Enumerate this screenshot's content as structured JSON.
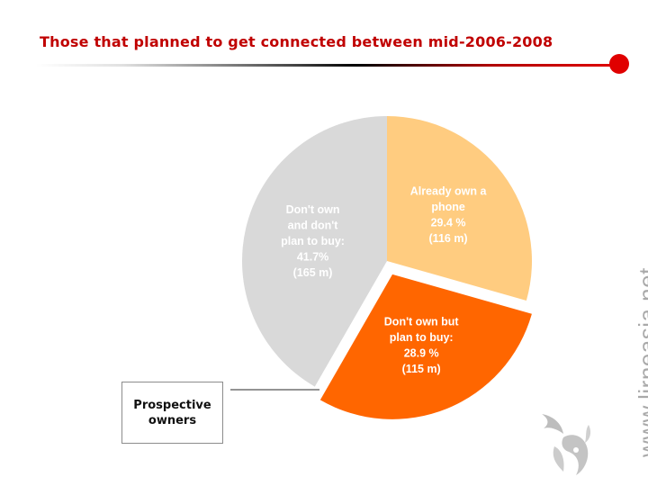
{
  "title": "Those that planned to get connected between mid-2006-2008",
  "callout": {
    "line1": "Prospective",
    "line2": "owners"
  },
  "watermark": "www.lirneasia.net",
  "icons": {
    "logo": "lirneasia-flame-logo"
  },
  "colors": {
    "title": "#c00000",
    "already_own": "#ffcc80",
    "plan_to_buy": "#ff6600",
    "dont_plan": "#d9d9d9",
    "accent": "#e00000"
  },
  "chart_data": {
    "type": "pie",
    "title": "Those that planned to get connected between mid-2006-2008",
    "start_angle_deg": 0,
    "direction": "clockwise",
    "exploded": "Don't own but plan to buy",
    "slices": [
      {
        "name": "Already own a phone",
        "value": 29.4,
        "millions": 116,
        "color": "#ffcc80",
        "label_lines": [
          "Already own a",
          "phone",
          "29.4 %",
          "(116 m)"
        ]
      },
      {
        "name": "Don't own but plan to buy",
        "value": 28.9,
        "millions": 115,
        "color": "#ff6600",
        "label_lines": [
          "Don't own but",
          "plan to buy:",
          "28.9 %",
          "(115 m)"
        ]
      },
      {
        "name": "Don't own and don't plan to buy",
        "value": 41.7,
        "millions": 165,
        "color": "#d9d9d9",
        "label_lines": [
          "Don't own",
          "and don't",
          "plan to buy:",
          "41.7%",
          "(165 m)"
        ]
      }
    ]
  }
}
